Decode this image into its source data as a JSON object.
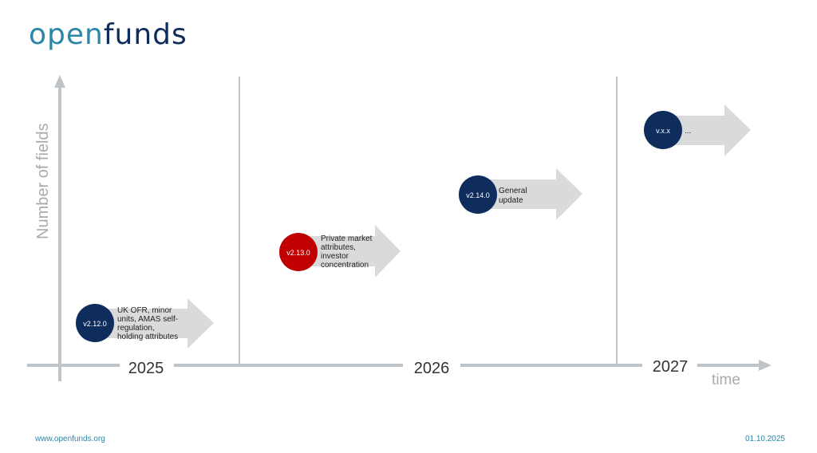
{
  "logo": {
    "part1": "open",
    "part2": "funds"
  },
  "axes": {
    "y_label": "Number of fields",
    "x_label": "time"
  },
  "years": [
    "2025",
    "2026",
    "2027"
  ],
  "releases": [
    {
      "version": "v2.12.0",
      "lines": [
        "UK OFR, minor",
        "units, AMAS self-",
        "regulation,",
        "holding attributes"
      ],
      "color": "#0e2d5c"
    },
    {
      "version": "v2.13.0",
      "lines": [
        "Private market",
        "attributes,",
        "investor",
        "concentration"
      ],
      "color": "#c00000"
    },
    {
      "version": "v2.14.0",
      "lines": [
        "General",
        "update"
      ],
      "color": "#0e2d5c"
    },
    {
      "version": "v.x.x",
      "lines": [
        "..."
      ],
      "color": "#0e2d5c"
    }
  ],
  "colors": {
    "axis": "#bfc4c9",
    "arrow": "#d9dadc",
    "navy": "#0e2d5c",
    "red": "#c00000",
    "accent": "#2c86a8"
  },
  "footer": {
    "url": "www.openfunds.org",
    "date": "01.10.2025"
  }
}
